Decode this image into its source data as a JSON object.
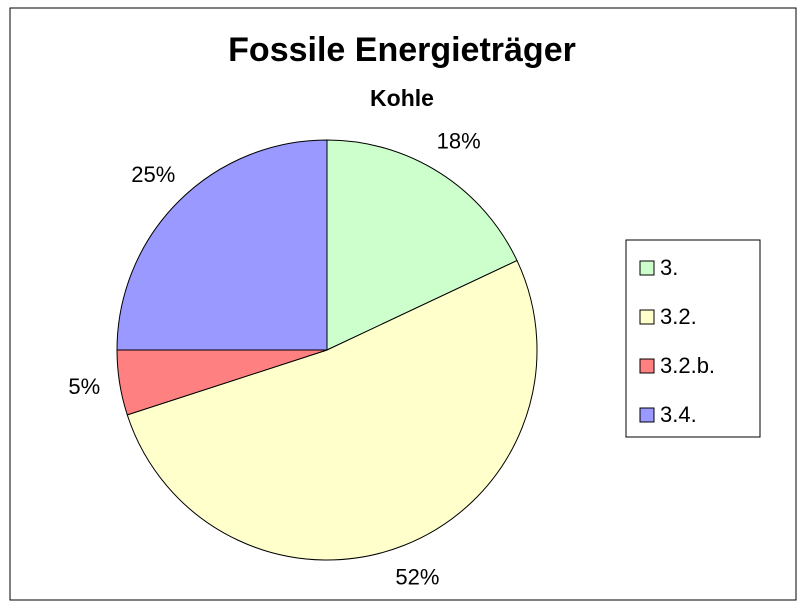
{
  "chart_data": {
    "type": "pie",
    "title": "Fossile Energieträger",
    "subtitle": "Kohle",
    "categories": [
      "3.",
      "3.2.",
      "3.2.b.",
      "3.4."
    ],
    "values": [
      18,
      52,
      5,
      25
    ],
    "value_labels": [
      "18%",
      "52%",
      "5%",
      "25%"
    ],
    "colors": [
      "#ccffcc",
      "#ffffcc",
      "#ff8080",
      "#9999ff"
    ],
    "legend": "right"
  }
}
